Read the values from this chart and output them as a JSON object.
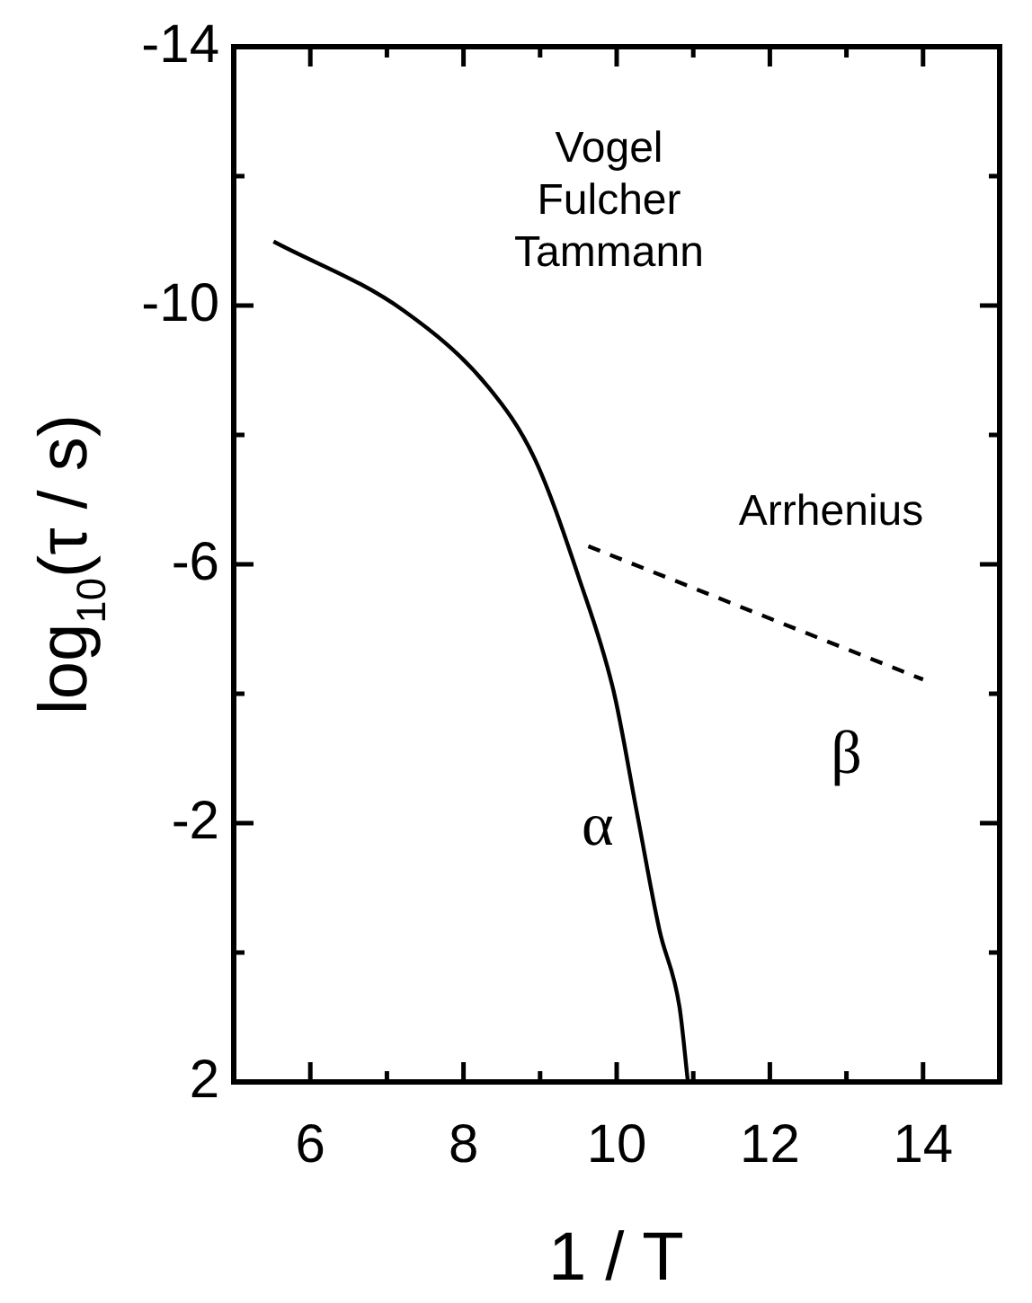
{
  "chart_data": {
    "type": "line",
    "xlabel": "1 / T",
    "ylabel": "log$_{10}$(τ / s)",
    "xlim": [
      5,
      15
    ],
    "xticks": [
      {
        "value": 5,
        "label": null
      },
      6,
      {
        "value": 7,
        "label": null
      },
      8,
      {
        "value": 9,
        "label": null
      },
      10,
      {
        "value": 11,
        "label": null
      },
      12,
      {
        "value": 13,
        "label": null
      },
      14,
      {
        "value": 15,
        "label": null
      }
    ],
    "ylim": [
      2,
      -14
    ],
    "yticks": [
      -14,
      {
        "value": -12,
        "label": null
      },
      -10,
      {
        "value": -8,
        "label": null
      },
      -6,
      {
        "value": -4,
        "label": null
      },
      -2,
      {
        "value": 0,
        "label": null
      },
      2
    ],
    "series": [
      {
        "color": "#000000",
        "line_style": "solid",
        "x": [
          5.52,
          7.22,
          8.33,
          8.93,
          9.51,
          9.96,
          10.26,
          10.56,
          10.82,
          10.93
        ],
        "values": [
          -10.99,
          -9.92,
          -8.73,
          -7.63,
          -5.78,
          -4.04,
          -2.19,
          -0.34,
          0.84,
          2
        ]
      },
      {
        "color": "#000000",
        "line_style": "dashed",
        "x": [
          9.63,
          14.0
        ],
        "values": [
          -6.28,
          -4.22
        ]
      }
    ],
    "marker": "none",
    "grid": false,
    "legend": false,
    "annotations": [
      "Vogel\nFulcher\nTammann",
      "Arrhenius",
      "α",
      "β"
    ]
  }
}
